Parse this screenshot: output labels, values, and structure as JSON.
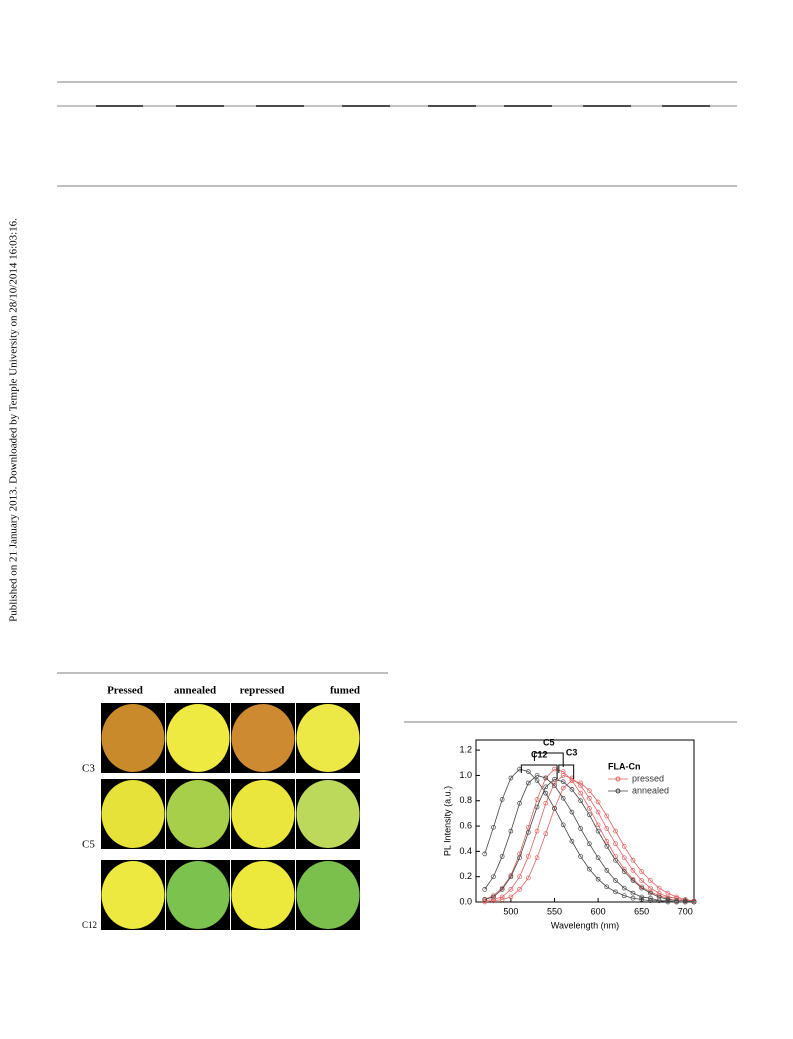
{
  "sidebar": "Published on 21 January 2013. Downloaded by Temple University on 28/10/2014 16:03:16.",
  "figure_photos": {
    "columns": [
      "Pressed",
      "annealed",
      "repressed",
      "fumed"
    ],
    "rows": [
      {
        "label": "C3",
        "colors": [
          "#c98a2c",
          "#eeea42",
          "#cd8a30",
          "#ece846"
        ]
      },
      {
        "label": "C5",
        "colors": [
          "#e6e23a",
          "#a8cf4a",
          "#eae63c",
          "#bdd95c"
        ]
      },
      {
        "label": "C12",
        "colors": [
          "#eee93e",
          "#7cc24e",
          "#ede83c",
          "#7bc04c"
        ]
      }
    ]
  },
  "chart_data": {
    "type": "line",
    "x_label": "Wavelength (nm)",
    "y_label": "PL Intensity (a.u.)",
    "legend_title": "FLA-Cn",
    "marker": "open-circle",
    "x": [
      470,
      480,
      490,
      500,
      510,
      520,
      530,
      540,
      550,
      560,
      570,
      580,
      590,
      600,
      610,
      620,
      630,
      640,
      650,
      660,
      670,
      680,
      690,
      700,
      710
    ],
    "xlim": [
      460,
      710
    ],
    "xticks": [
      500,
      550,
      600,
      650,
      700
    ],
    "ylim": [
      0,
      1.28
    ],
    "yticks": [
      {
        "value": 0,
        "label": "0.0"
      },
      0.2,
      0.4,
      0.6,
      0.8,
      {
        "value": 1,
        "label": "1.0"
      },
      1.2
    ],
    "groups": [
      {
        "name": "pressed",
        "color": "#e06060",
        "series": [
          {
            "values": [
              0.02,
              0.05,
              0.11,
              0.21,
              0.38,
              0.59,
              0.81,
              0.98,
              1.05,
              1.03,
              0.96,
              0.86,
              0.74,
              0.61,
              0.48,
              0.36,
              0.26,
              0.18,
              0.12,
              0.08,
              0.05,
              0.03,
              0.01,
              0.01,
              0
            ]
          },
          {
            "values": [
              0.01,
              0.02,
              0.04,
              0.1,
              0.2,
              0.36,
              0.56,
              0.78,
              0.94,
              1.0,
              0.98,
              0.92,
              0.82,
              0.71,
              0.58,
              0.46,
              0.35,
              0.25,
              0.17,
              0.11,
              0.07,
              0.04,
              0.03,
              0.01,
              0.01
            ]
          },
          {
            "values": [
              0,
              0.01,
              0.02,
              0.04,
              0.1,
              0.19,
              0.35,
              0.54,
              0.74,
              0.9,
              0.96,
              0.94,
              0.88,
              0.79,
              0.68,
              0.56,
              0.44,
              0.33,
              0.24,
              0.17,
              0.11,
              0.07,
              0.04,
              0.02,
              0.01
            ]
          }
        ]
      },
      {
        "name": "annealed",
        "color": "#444444",
        "series": [
          {
            "values": [
              0.38,
              0.59,
              0.81,
              0.98,
              1.05,
              1.03,
              0.96,
              0.86,
              0.74,
              0.61,
              0.48,
              0.36,
              0.26,
              0.18,
              0.12,
              0.08,
              0.05,
              0.03,
              0.02,
              0.01,
              0.01,
              0,
              0,
              0,
              0
            ]
          },
          {
            "values": [
              0.1,
              0.2,
              0.36,
              0.56,
              0.78,
              0.94,
              1.0,
              0.98,
              0.92,
              0.82,
              0.71,
              0.58,
              0.46,
              0.35,
              0.25,
              0.17,
              0.11,
              0.07,
              0.04,
              0.03,
              0.01,
              0.01,
              0,
              0,
              0
            ]
          },
          {
            "values": [
              0.02,
              0.04,
              0.1,
              0.2,
              0.35,
              0.55,
              0.75,
              0.91,
              0.97,
              0.95,
              0.89,
              0.8,
              0.69,
              0.56,
              0.44,
              0.33,
              0.24,
              0.17,
              0.11,
              0.07,
              0.04,
              0.02,
              0.01,
              0.01,
              0
            ]
          }
        ]
      }
    ],
    "annotations": [
      {
        "text": "C12",
        "range": [
          512,
          553
        ]
      },
      {
        "text": "C5",
        "range": [
          527,
          560
        ]
      },
      {
        "text": "C3",
        "range": [
          555,
          572
        ]
      }
    ]
  }
}
